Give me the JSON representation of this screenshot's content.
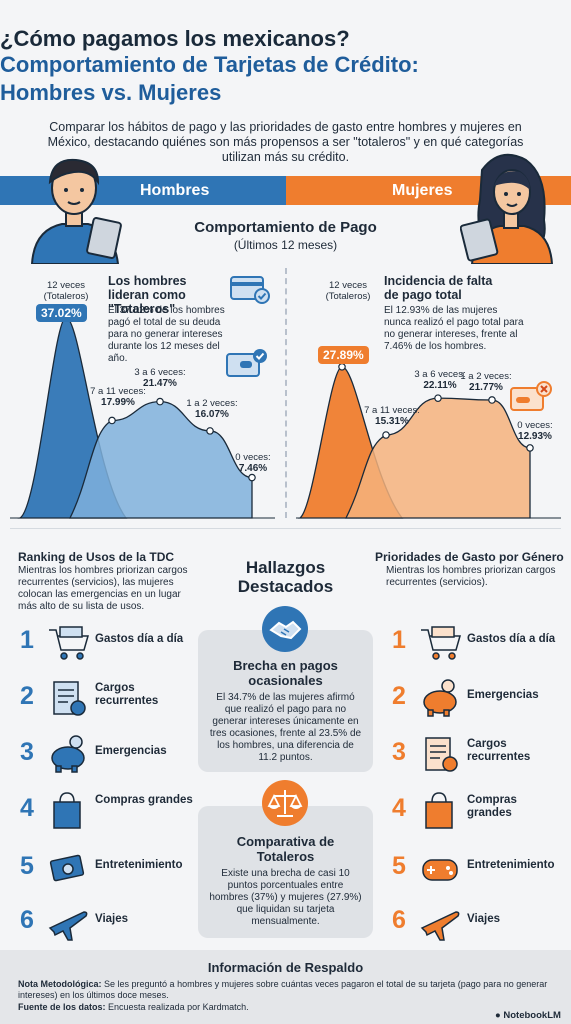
{
  "header": {
    "title_line1": "¿Cómo pagamos los mexicanos?",
    "title_line2": "Comportamiento de Tarjetas de Crédito:",
    "title_line3": "Hombres vs. Mujeres",
    "intro": "Comparar los hábitos de pago y las prioridades de gasto entre hombres y mujeres en México, destacando quiénes son más propensos a ser \"totaleros\" y en qué categorías utilizan más su crédito."
  },
  "bands": {
    "men": "Hombres",
    "women": "Mujeres"
  },
  "payment_section": {
    "title": "Comportamiento de Pago",
    "subtitle": "(Últimos 12 meses)"
  },
  "men_chart": {
    "peak_label": "12 veces\n(Totaleros)",
    "peak_value": "37.02%",
    "callout_title": "Los hombres lideran como \"Totaleros\"",
    "callout_text": "El 37.02% de los hombres pagó el total de su deuda para no generar intereses durante los 12 meses del año.",
    "points": [
      {
        "label": "7 a 11 veces:",
        "value": "17.99%"
      },
      {
        "label": "3 a 6 veces:",
        "value": "21.47%"
      },
      {
        "label": "1 a 2 veces:",
        "value": "16.07%"
      },
      {
        "label": "0 veces:",
        "value": "7.46%"
      }
    ]
  },
  "women_chart": {
    "peak_label": "12 veces\n(Totaleros)",
    "peak_value": "27.89%",
    "callout_title": "Incidencia de falta de pago total",
    "callout_text": "El 12.93% de las mujeres nunca realizó el pago total para no generar intereses, frente al 7.46% de los hombres.",
    "points": [
      {
        "label": "7 a 11 veces:",
        "value": "15.31%"
      },
      {
        "label": "3 a 6 veces:",
        "value": "22.11%"
      },
      {
        "label": "1 a 2 veces:",
        "value": "21.77%"
      },
      {
        "label": "0 veces:",
        "value": "12.93%"
      }
    ]
  },
  "chart_data": [
    {
      "type": "area",
      "categories": [
        "12 veces (Totaleros)",
        "7 a 11 veces",
        "3 a 6 veces",
        "1 a 2 veces",
        "0 veces"
      ],
      "series": [
        {
          "name": "Hombres",
          "values": [
            37.02,
            17.99,
            21.47,
            16.07,
            7.46
          ]
        }
      ],
      "title": "",
      "xlabel": "",
      "ylabel": ""
    },
    {
      "type": "area",
      "categories": [
        "12 veces (Totaleros)",
        "7 a 11 veces",
        "3 a 6 veces",
        "1 a 2 veces",
        "0 veces"
      ],
      "series": [
        {
          "name": "Mujeres",
          "values": [
            27.89,
            15.31,
            22.11,
            21.77,
            12.93
          ]
        }
      ],
      "title": "",
      "xlabel": "",
      "ylabel": ""
    }
  ],
  "left_column": {
    "title": "Ranking de Usos de la TDC",
    "desc": "Mientras los hombres priorizan cargos recurrentes (servicios), las mujeres colocan las emergencias en un lugar más alto de su lista de usos.",
    "items": [
      {
        "num": "1",
        "label": "Gastos día a día",
        "icon": "shopping-cart-icon"
      },
      {
        "num": "2",
        "label": "Cargos recurrentes",
        "icon": "invoice-icon"
      },
      {
        "num": "3",
        "label": "Emergencias",
        "icon": "piggy-bank-icon"
      },
      {
        "num": "4",
        "label": "Compras grandes",
        "icon": "shopping-bag-icon"
      },
      {
        "num": "5",
        "label": "Entretenimiento",
        "icon": "tickets-icon"
      },
      {
        "num": "6",
        "label": "Viajes",
        "icon": "airplane-icon"
      }
    ]
  },
  "right_column": {
    "title": "Prioridades de Gasto por Género",
    "desc": "Mientras los hombres priorizan cargos recurrentes (servicios).",
    "items": [
      {
        "num": "1",
        "label": "Gastos día a día",
        "icon": "shopping-cart-icon"
      },
      {
        "num": "2",
        "label": "Emergencias",
        "icon": "piggy-bank-icon"
      },
      {
        "num": "3",
        "label": "Cargos recurrentes",
        "icon": "invoice-icon"
      },
      {
        "num": "4",
        "label": "Compras grandes",
        "icon": "shopping-bag-icon"
      },
      {
        "num": "5",
        "label": "Entretenimiento",
        "icon": "game-controller-icon"
      },
      {
        "num": "6",
        "label": "Viajes",
        "icon": "airplane-icon"
      }
    ]
  },
  "highlights": {
    "title": "Hallazgos Destacados",
    "card1": {
      "title": "Brecha en pagos ocasionales",
      "text": "El 34.7% de las mujeres afirmó que realizó el pago para no generar intereses únicamente en tres ocasiones, frente al 23.5% de los hombres, una diferencia de 11.2 puntos."
    },
    "card2": {
      "title": "Comparativa de Totaleros",
      "text": "Existe una brecha de casi 10 puntos porcentuales entre hombres (37%) y mujeres (27.9%) que liquidan su tarjeta mensualmente."
    }
  },
  "footer": {
    "title": "Información de Respaldo",
    "note_label": "Nota Metodológica:",
    "note": "Se les preguntó a hombres y mujeres sobre cuántas veces pagaron el total de su tarjeta (pago para no generar intereses) en los últimos doce meses.",
    "source_label": "Fuente de los datos:",
    "source": "Encuesta realizada por Kardmatch.",
    "brand": "NotebookLM"
  },
  "colors": {
    "blue": "#2f75b5",
    "orange": "#ef7d2e",
    "dark": "#1a2a3a"
  }
}
